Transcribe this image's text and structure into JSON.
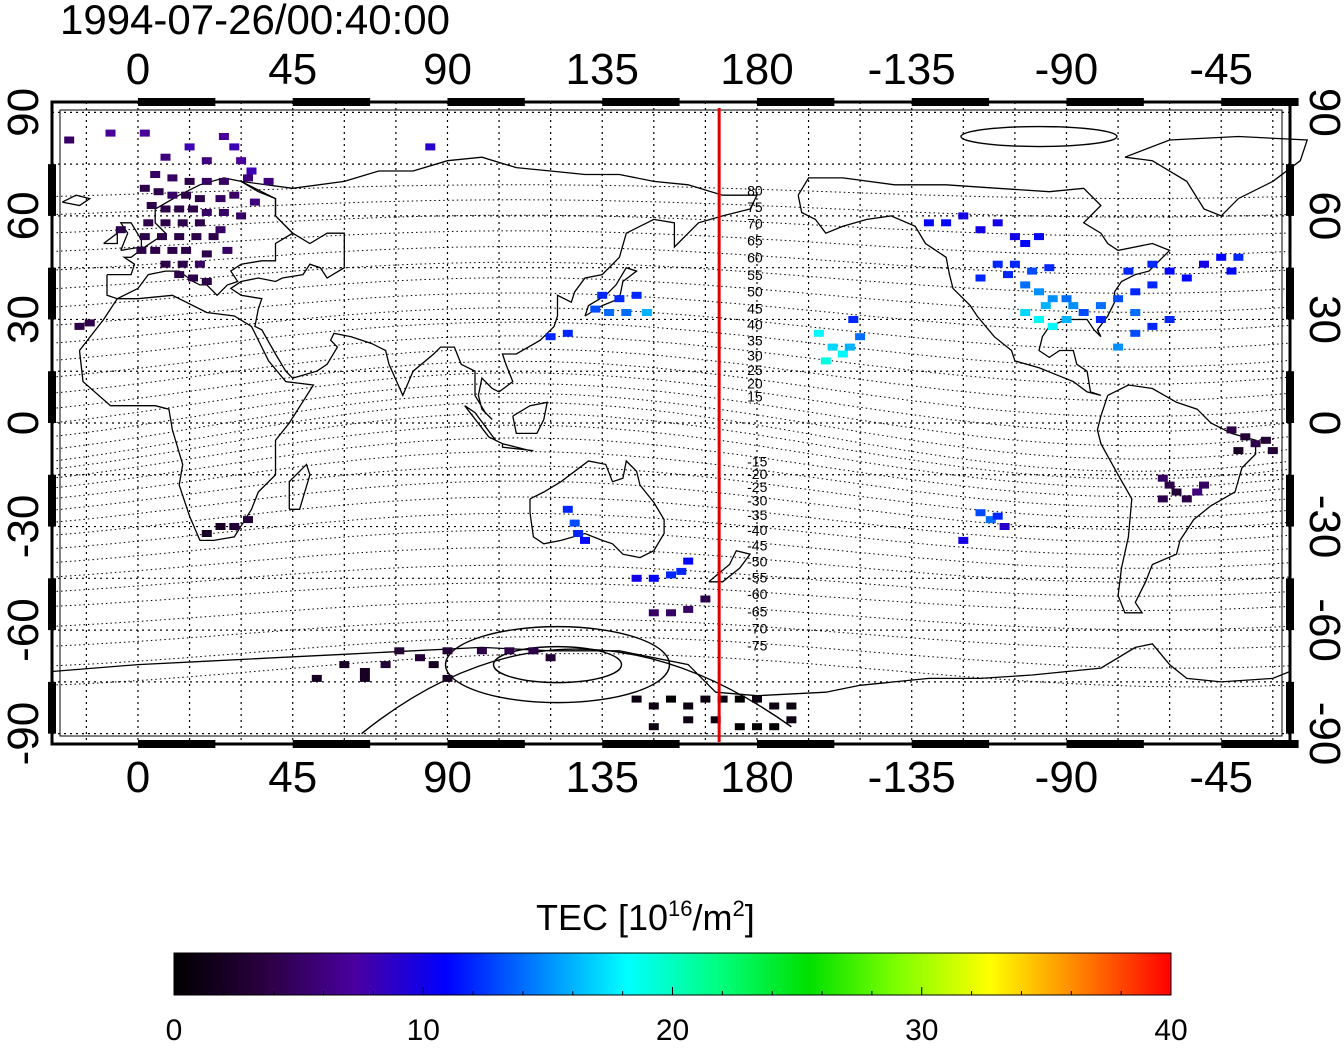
{
  "title": "1994-07-26/00:40:00",
  "map": {
    "lon_min": -25,
    "lon_max": 335,
    "lat_min": -93,
    "lat_max": 93,
    "lon_ticks": [
      0,
      45,
      90,
      135,
      180,
      225,
      270,
      315
    ],
    "lon_tick_labels": [
      "0",
      "45",
      "90",
      "135",
      "180",
      "-135",
      "-90",
      "-45"
    ],
    "lat_ticks": [
      -90,
      -60,
      -30,
      0,
      30,
      60,
      90
    ],
    "lat_tick_labels": [
      "-90",
      "-60",
      "-30",
      "0",
      "30",
      "60",
      "90"
    ],
    "grid": "dotted, every 15 degrees",
    "marker_line_lon": 169,
    "marker_line_color": "#e00000"
  },
  "dip_contour_labels": [
    "80",
    "75",
    "70",
    "65",
    "60",
    "55",
    "50",
    "45",
    "40",
    "35",
    "30",
    "25",
    "20",
    "15",
    "-15",
    "-20",
    "-25",
    "-30",
    "-35",
    "-40",
    "-45",
    "-50",
    "-55",
    "-60",
    "-65",
    "-70",
    "-75"
  ],
  "colorbar": {
    "title_main": "TEC  [10",
    "title_sup1": "16",
    "title_mid": "/m",
    "title_sup2": "2",
    "title_end": "]",
    "min": 0,
    "max": 40,
    "ticks": [
      "0",
      "10",
      "20",
      "30",
      "40"
    ],
    "colors": [
      "#000000",
      "#2a0040",
      "#4a00a0",
      "#0000ff",
      "#0080ff",
      "#00ffff",
      "#00ff80",
      "#00e000",
      "#80ff00",
      "#ffff00",
      "#ff8000",
      "#ff0000"
    ]
  },
  "tec_observations": {
    "description_units": "lon, lat, TEC (10^16/m^2)",
    "points": [
      [
        -20,
        82,
        5
      ],
      [
        -8,
        84,
        7
      ],
      [
        2,
        84,
        7
      ],
      [
        15,
        80,
        8
      ],
      [
        25,
        83,
        7
      ],
      [
        28,
        80,
        8
      ],
      [
        8,
        77,
        6
      ],
      [
        20,
        76,
        6
      ],
      [
        30,
        76,
        7
      ],
      [
        33,
        73,
        8
      ],
      [
        5,
        72,
        5
      ],
      [
        10,
        71,
        5
      ],
      [
        15,
        70,
        4
      ],
      [
        20,
        70,
        5
      ],
      [
        25,
        70,
        5
      ],
      [
        32,
        71,
        6
      ],
      [
        38,
        70,
        6
      ],
      [
        2,
        68,
        4
      ],
      [
        6,
        67,
        4
      ],
      [
        10,
        66,
        5
      ],
      [
        14,
        66,
        4
      ],
      [
        18,
        65,
        4
      ],
      [
        24,
        65,
        5
      ],
      [
        28,
        66,
        5
      ],
      [
        34,
        64,
        6
      ],
      [
        4,
        63,
        4
      ],
      [
        8,
        62,
        4
      ],
      [
        12,
        62,
        4
      ],
      [
        16,
        62,
        4
      ],
      [
        20,
        61,
        5
      ],
      [
        25,
        61,
        5
      ],
      [
        30,
        60,
        5
      ],
      [
        -5,
        56,
        4
      ],
      [
        3,
        58,
        4
      ],
      [
        8,
        58,
        4
      ],
      [
        13,
        58,
        4
      ],
      [
        18,
        58,
        4
      ],
      [
        24,
        56,
        5
      ],
      [
        2,
        54,
        4
      ],
      [
        7,
        54,
        4
      ],
      [
        12,
        54,
        4
      ],
      [
        17,
        54,
        4
      ],
      [
        22,
        54,
        4
      ],
      [
        1,
        50,
        4
      ],
      [
        5,
        50,
        4
      ],
      [
        10,
        50,
        4
      ],
      [
        14,
        50,
        4
      ],
      [
        20,
        49,
        4
      ],
      [
        26,
        50,
        5
      ],
      [
        8,
        46,
        4
      ],
      [
        13,
        46,
        4
      ],
      [
        18,
        46,
        5
      ],
      [
        12,
        43,
        4
      ],
      [
        16,
        42,
        4
      ],
      [
        20,
        41,
        4
      ],
      [
        -17,
        28,
        4
      ],
      [
        -14,
        29,
        4
      ],
      [
        85,
        80,
        9
      ],
      [
        120,
        25,
        12
      ],
      [
        125,
        26,
        12
      ],
      [
        135,
        37,
        12
      ],
      [
        140,
        36,
        12
      ],
      [
        145,
        37,
        12
      ],
      [
        133,
        33,
        13
      ],
      [
        137,
        32,
        14
      ],
      [
        142,
        32,
        14
      ],
      [
        148,
        32,
        16
      ],
      [
        125,
        -25,
        12
      ],
      [
        127,
        -29,
        13
      ],
      [
        128,
        -32,
        12
      ],
      [
        130,
        -34,
        11
      ],
      [
        145,
        -45,
        10
      ],
      [
        150,
        -45,
        11
      ],
      [
        155,
        -44,
        12
      ],
      [
        158,
        -43,
        12
      ],
      [
        160,
        -40,
        11
      ],
      [
        150,
        -55,
        5
      ],
      [
        155,
        -55,
        5
      ],
      [
        160,
        -54,
        5
      ],
      [
        165,
        -51,
        4
      ],
      [
        230,
        58,
        11
      ],
      [
        235,
        58,
        11
      ],
      [
        240,
        60,
        10
      ],
      [
        245,
        56,
        10
      ],
      [
        250,
        58,
        10
      ],
      [
        255,
        54,
        10
      ],
      [
        258,
        52,
        11
      ],
      [
        262,
        54,
        11
      ],
      [
        250,
        46,
        12
      ],
      [
        253,
        43,
        12
      ],
      [
        255,
        46,
        12
      ],
      [
        260,
        44,
        13
      ],
      [
        265,
        45,
        12
      ],
      [
        245,
        42,
        12
      ],
      [
        258,
        40,
        14
      ],
      [
        262,
        38,
        15
      ],
      [
        266,
        36,
        15
      ],
      [
        270,
        36,
        14
      ],
      [
        275,
        32,
        13
      ],
      [
        280,
        30,
        12
      ],
      [
        258,
        32,
        17
      ],
      [
        262,
        30,
        18
      ],
      [
        266,
        28,
        18
      ],
      [
        270,
        30,
        16
      ],
      [
        264,
        34,
        16
      ],
      [
        272,
        34,
        15
      ],
      [
        280,
        34,
        14
      ],
      [
        285,
        36,
        13
      ],
      [
        290,
        38,
        12
      ],
      [
        295,
        40,
        12
      ],
      [
        288,
        44,
        12
      ],
      [
        295,
        46,
        12
      ],
      [
        300,
        44,
        11
      ],
      [
        305,
        42,
        11
      ],
      [
        310,
        46,
        10
      ],
      [
        315,
        48,
        11
      ],
      [
        318,
        44,
        11
      ],
      [
        320,
        48,
        12
      ],
      [
        290,
        32,
        14
      ],
      [
        285,
        22,
        15
      ],
      [
        290,
        26,
        13
      ],
      [
        295,
        28,
        12
      ],
      [
        300,
        30,
        12
      ],
      [
        200,
        18,
        19
      ],
      [
        205,
        20,
        18
      ],
      [
        207,
        22,
        16
      ],
      [
        202,
        22,
        17
      ],
      [
        198,
        26,
        18
      ],
      [
        210,
        25,
        14
      ],
      [
        208,
        30,
        12
      ],
      [
        245,
        -26,
        13
      ],
      [
        248,
        -28,
        14
      ],
      [
        250,
        -27,
        12
      ],
      [
        240,
        -34,
        10
      ],
      [
        252,
        -30,
        9
      ],
      [
        318,
        -2,
        4
      ],
      [
        322,
        -4,
        3
      ],
      [
        325,
        -6,
        4
      ],
      [
        328,
        -5,
        3
      ],
      [
        320,
        -8,
        2
      ],
      [
        330,
        -8,
        3
      ],
      [
        298,
        -16,
        5
      ],
      [
        300,
        -18,
        4
      ],
      [
        302,
        -20,
        3
      ],
      [
        305,
        -22,
        4
      ],
      [
        298,
        -22,
        4
      ],
      [
        310,
        -18,
        5
      ],
      [
        308,
        -20,
        6
      ],
      [
        20,
        -32,
        2
      ],
      [
        24,
        -30,
        2
      ],
      [
        28,
        -30,
        3
      ],
      [
        32,
        -28,
        3
      ],
      [
        52,
        -74,
        2
      ],
      [
        60,
        -70,
        2
      ],
      [
        66,
        -72,
        2
      ],
      [
        72,
        -70,
        3
      ],
      [
        76,
        -66,
        3
      ],
      [
        82,
        -68,
        3
      ],
      [
        86,
        -70,
        2
      ],
      [
        90,
        -66,
        3
      ],
      [
        100,
        -66,
        4
      ],
      [
        108,
        -66,
        4
      ],
      [
        115,
        -66,
        4
      ],
      [
        120,
        -68,
        3
      ],
      [
        90,
        -74,
        2
      ],
      [
        66,
        -74,
        2
      ],
      [
        145,
        -80,
        1
      ],
      [
        150,
        -82,
        1
      ],
      [
        155,
        -80,
        0
      ],
      [
        160,
        -82,
        1
      ],
      [
        165,
        -80,
        1
      ],
      [
        170,
        -80,
        1
      ],
      [
        175,
        -80,
        0
      ],
      [
        180,
        -80,
        1
      ],
      [
        185,
        -82,
        1
      ],
      [
        190,
        -82,
        1
      ],
      [
        150,
        -88,
        1
      ],
      [
        160,
        -86,
        1
      ],
      [
        168,
        -86,
        1
      ],
      [
        175,
        -88,
        0
      ],
      [
        180,
        -88,
        0
      ],
      [
        185,
        -88,
        0
      ],
      [
        190,
        -86,
        1
      ]
    ]
  }
}
